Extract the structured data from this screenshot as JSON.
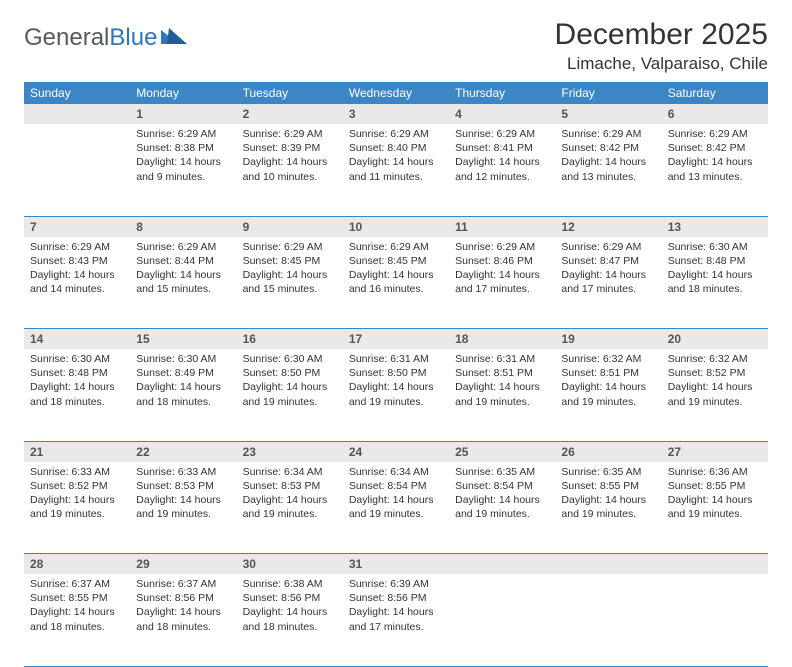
{
  "brand": {
    "word1": "General",
    "word2": "Blue"
  },
  "title": "December 2025",
  "location": "Limache, Valparaiso, Chile",
  "colors": {
    "header_bg": "#3d86c6",
    "header_text": "#ffffff",
    "daynum_bg": "#e9e9e9",
    "row_divider": "#3d86c6",
    "logo_gray": "#5a5a5a",
    "logo_blue": "#2f77bb"
  },
  "weekdays": [
    "Sunday",
    "Monday",
    "Tuesday",
    "Wednesday",
    "Thursday",
    "Friday",
    "Saturday"
  ],
  "weeks": [
    [
      null,
      {
        "n": "1",
        "sunrise": "6:29 AM",
        "sunset": "8:38 PM",
        "daylight": "14 hours and 9 minutes."
      },
      {
        "n": "2",
        "sunrise": "6:29 AM",
        "sunset": "8:39 PM",
        "daylight": "14 hours and 10 minutes."
      },
      {
        "n": "3",
        "sunrise": "6:29 AM",
        "sunset": "8:40 PM",
        "daylight": "14 hours and 11 minutes."
      },
      {
        "n": "4",
        "sunrise": "6:29 AM",
        "sunset": "8:41 PM",
        "daylight": "14 hours and 12 minutes."
      },
      {
        "n": "5",
        "sunrise": "6:29 AM",
        "sunset": "8:42 PM",
        "daylight": "14 hours and 13 minutes."
      },
      {
        "n": "6",
        "sunrise": "6:29 AM",
        "sunset": "8:42 PM",
        "daylight": "14 hours and 13 minutes."
      }
    ],
    [
      {
        "n": "7",
        "sunrise": "6:29 AM",
        "sunset": "8:43 PM",
        "daylight": "14 hours and 14 minutes."
      },
      {
        "n": "8",
        "sunrise": "6:29 AM",
        "sunset": "8:44 PM",
        "daylight": "14 hours and 15 minutes."
      },
      {
        "n": "9",
        "sunrise": "6:29 AM",
        "sunset": "8:45 PM",
        "daylight": "14 hours and 15 minutes."
      },
      {
        "n": "10",
        "sunrise": "6:29 AM",
        "sunset": "8:45 PM",
        "daylight": "14 hours and 16 minutes."
      },
      {
        "n": "11",
        "sunrise": "6:29 AM",
        "sunset": "8:46 PM",
        "daylight": "14 hours and 17 minutes."
      },
      {
        "n": "12",
        "sunrise": "6:29 AM",
        "sunset": "8:47 PM",
        "daylight": "14 hours and 17 minutes."
      },
      {
        "n": "13",
        "sunrise": "6:30 AM",
        "sunset": "8:48 PM",
        "daylight": "14 hours and 18 minutes."
      }
    ],
    [
      {
        "n": "14",
        "sunrise": "6:30 AM",
        "sunset": "8:48 PM",
        "daylight": "14 hours and 18 minutes."
      },
      {
        "n": "15",
        "sunrise": "6:30 AM",
        "sunset": "8:49 PM",
        "daylight": "14 hours and 18 minutes."
      },
      {
        "n": "16",
        "sunrise": "6:30 AM",
        "sunset": "8:50 PM",
        "daylight": "14 hours and 19 minutes."
      },
      {
        "n": "17",
        "sunrise": "6:31 AM",
        "sunset": "8:50 PM",
        "daylight": "14 hours and 19 minutes."
      },
      {
        "n": "18",
        "sunrise": "6:31 AM",
        "sunset": "8:51 PM",
        "daylight": "14 hours and 19 minutes."
      },
      {
        "n": "19",
        "sunrise": "6:32 AM",
        "sunset": "8:51 PM",
        "daylight": "14 hours and 19 minutes."
      },
      {
        "n": "20",
        "sunrise": "6:32 AM",
        "sunset": "8:52 PM",
        "daylight": "14 hours and 19 minutes."
      }
    ],
    [
      {
        "n": "21",
        "sunrise": "6:33 AM",
        "sunset": "8:52 PM",
        "daylight": "14 hours and 19 minutes."
      },
      {
        "n": "22",
        "sunrise": "6:33 AM",
        "sunset": "8:53 PM",
        "daylight": "14 hours and 19 minutes."
      },
      {
        "n": "23",
        "sunrise": "6:34 AM",
        "sunset": "8:53 PM",
        "daylight": "14 hours and 19 minutes."
      },
      {
        "n": "24",
        "sunrise": "6:34 AM",
        "sunset": "8:54 PM",
        "daylight": "14 hours and 19 minutes."
      },
      {
        "n": "25",
        "sunrise": "6:35 AM",
        "sunset": "8:54 PM",
        "daylight": "14 hours and 19 minutes."
      },
      {
        "n": "26",
        "sunrise": "6:35 AM",
        "sunset": "8:55 PM",
        "daylight": "14 hours and 19 minutes."
      },
      {
        "n": "27",
        "sunrise": "6:36 AM",
        "sunset": "8:55 PM",
        "daylight": "14 hours and 19 minutes."
      }
    ],
    [
      {
        "n": "28",
        "sunrise": "6:37 AM",
        "sunset": "8:55 PM",
        "daylight": "14 hours and 18 minutes."
      },
      {
        "n": "29",
        "sunrise": "6:37 AM",
        "sunset": "8:56 PM",
        "daylight": "14 hours and 18 minutes."
      },
      {
        "n": "30",
        "sunrise": "6:38 AM",
        "sunset": "8:56 PM",
        "daylight": "14 hours and 18 minutes."
      },
      {
        "n": "31",
        "sunrise": "6:39 AM",
        "sunset": "8:56 PM",
        "daylight": "14 hours and 17 minutes."
      },
      null,
      null,
      null
    ]
  ],
  "labels": {
    "sunrise": "Sunrise:",
    "sunset": "Sunset:",
    "daylight": "Daylight:"
  }
}
